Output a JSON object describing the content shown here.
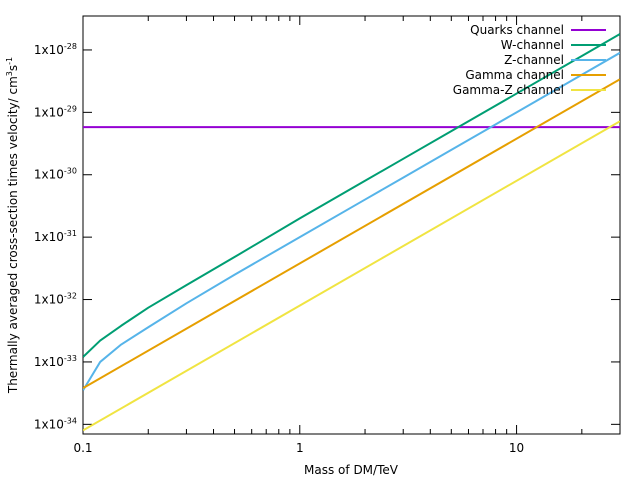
{
  "chart_data": {
    "type": "line",
    "title": "",
    "xlabel": "Mass of DM/TeV",
    "ylabel": "Thermally averaged cross-section times velocity/ cm",
    "ylabel_sup1": "3",
    "ylabel_mid": "s",
    "ylabel_sup2": "-1",
    "x_scale": "log",
    "y_scale": "log",
    "xlim": [
      0.1,
      30
    ],
    "ylim": [
      7e-35,
      3.5e-28
    ],
    "grid": false,
    "legend_position": "top-right",
    "x_ticks": [
      {
        "value": 0.1,
        "label": "0.1"
      },
      {
        "value": 1,
        "label": "1"
      },
      {
        "value": 10,
        "label": "10"
      }
    ],
    "y_ticks": [
      {
        "value": 1e-34,
        "base": "1x10",
        "exp": "-34"
      },
      {
        "value": 1e-33,
        "base": "1x10",
        "exp": "-33"
      },
      {
        "value": 1e-32,
        "base": "1x10",
        "exp": "-32"
      },
      {
        "value": 1e-31,
        "base": "1x10",
        "exp": "-31"
      },
      {
        "value": 1e-30,
        "base": "1x10",
        "exp": "-30"
      },
      {
        "value": 1e-29,
        "base": "1x10",
        "exp": "-29"
      },
      {
        "value": 1e-28,
        "base": "1x10",
        "exp": "-28"
      }
    ],
    "series": [
      {
        "name": "Quarks channel",
        "color": "#9400d3",
        "x": [
          0.1,
          30
        ],
        "y": [
          5.8e-30,
          5.8e-30
        ]
      },
      {
        "name": "W-channel",
        "color": "#009e73",
        "x": [
          0.1,
          0.12,
          0.15,
          0.2,
          0.3,
          0.5,
          1,
          2,
          3,
          5,
          10,
          20,
          30
        ],
        "y": [
          1.2e-33,
          2.2e-33,
          3.8e-33,
          7.4e-33,
          1.7e-32,
          4.8e-32,
          2e-31,
          8e-31,
          1.8e-30,
          5e-30,
          2e-29,
          8e-29,
          1.8e-28
        ]
      },
      {
        "name": "Z-channel",
        "color": "#56b4e9",
        "x": [
          0.1,
          0.12,
          0.15,
          0.2,
          0.3,
          0.5,
          1,
          2,
          3,
          5,
          10,
          20,
          30
        ],
        "y": [
          3.5e-34,
          1e-33,
          1.9e-33,
          3.6e-33,
          8.7e-33,
          2.5e-32,
          1e-31,
          4e-31,
          9e-31,
          2.5e-30,
          1e-29,
          4e-29,
          9e-29
        ]
      },
      {
        "name": "Gamma channel",
        "color": "#e69f00",
        "x": [
          0.1,
          30
        ],
        "y": [
          3.8e-34,
          3.4e-29
        ]
      },
      {
        "name": "Gamma-Z channel",
        "color": "#f0e442",
        "x": [
          0.1,
          30
        ],
        "y": [
          8e-35,
          7.2e-30
        ]
      }
    ]
  }
}
